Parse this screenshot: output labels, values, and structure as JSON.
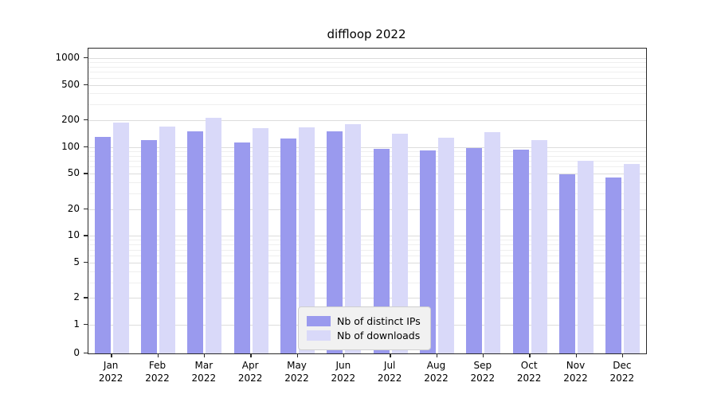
{
  "chart": {
    "colors": {
      "ips": "#9a9aee",
      "downloads": "#d9d9f9"
    },
    "grid_major_color": "#dcdcdc",
    "grid_minor_color": "#efefef"
  },
  "chart_data": {
    "type": "bar",
    "title": "diffloop 2022",
    "categories": [
      "Jan 2022",
      "Feb 2022",
      "Mar 2022",
      "Apr 2022",
      "May 2022",
      "Jun 2022",
      "Jul 2022",
      "Aug 2022",
      "Sep 2022",
      "Oct 2022",
      "Nov 2022",
      "Dec 2022"
    ],
    "series": [
      {
        "name": "Nb of distinct IPs",
        "values": [
          130,
          120,
          150,
          112,
          125,
          150,
          95,
          92,
          97,
          93,
          49,
          45
        ]
      },
      {
        "name": "Nb of downloads",
        "values": [
          190,
          170,
          215,
          162,
          168,
          182,
          140,
          127,
          148,
          120,
          70,
          65
        ]
      }
    ],
    "xlabel": "",
    "ylabel": "",
    "yscale": "symlog",
    "yticks": [
      0,
      1,
      2,
      5,
      10,
      20,
      50,
      100,
      200,
      500,
      1000
    ],
    "yticks_minor": [
      3,
      4,
      6,
      7,
      8,
      9,
      30,
      40,
      60,
      70,
      80,
      90,
      300,
      400,
      600,
      700,
      800,
      900
    ],
    "ylim": [
      0,
      1300
    ],
    "grid": true,
    "legend_position": "lower center"
  }
}
